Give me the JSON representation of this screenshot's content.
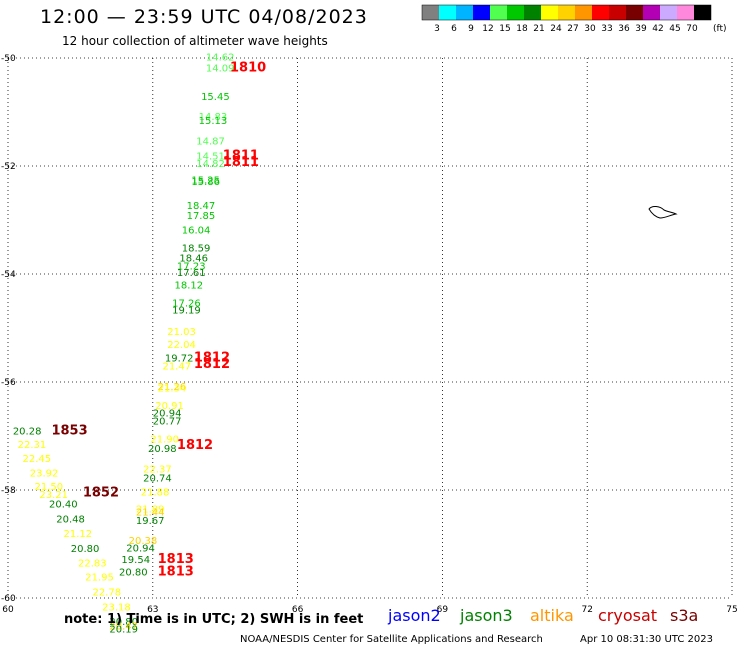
{
  "header": {
    "title": "12:00 — 23:59 UTC 04/08/2023",
    "subtitle": "12 hour collection of altimeter wave heights"
  },
  "legend": {
    "unit": "(ft)",
    "bins": [
      {
        "label": "3",
        "color": "#808080"
      },
      {
        "label": "6",
        "color": "#00ffff"
      },
      {
        "label": "9",
        "color": "#00b4ff"
      },
      {
        "label": "12",
        "color": "#0000ff"
      },
      {
        "label": "15",
        "color": "#50ff50"
      },
      {
        "label": "18",
        "color": "#00c800"
      },
      {
        "label": "21",
        "color": "#008200"
      },
      {
        "label": "24",
        "color": "#ffff00"
      },
      {
        "label": "27",
        "color": "#ffd200"
      },
      {
        "label": "30",
        "color": "#ff9600"
      },
      {
        "label": "33",
        "color": "#ff0000"
      },
      {
        "label": "36",
        "color": "#c80000"
      },
      {
        "label": "39",
        "color": "#780000"
      },
      {
        "label": "42",
        "color": "#b400b4"
      },
      {
        "label": "45",
        "color": "#ccaaff"
      },
      {
        "label": "70",
        "color": "#ff88dd"
      },
      {
        "label": "",
        "color": "#000000"
      }
    ]
  },
  "axes": {
    "lon_ticks": [
      "60",
      "63",
      "66",
      "69",
      "72",
      "75"
    ],
    "lat_ticks": [
      "-50",
      "-52",
      "-54",
      "-56",
      "-58",
      "-60"
    ]
  },
  "observations": [
    {
      "value": "14.62",
      "lon": 64.1,
      "lat": -50.05,
      "color": "#50ff50"
    },
    {
      "value": "14.09",
      "lon": 64.1,
      "lat": -50.25,
      "color": "#50ff50"
    },
    {
      "value": "15.45",
      "lon": 64.0,
      "lat": -50.78,
      "color": "#00c800"
    },
    {
      "value": "14.83",
      "lon": 63.95,
      "lat": -51.15,
      "color": "#50ff50"
    },
    {
      "value": "15.13",
      "lon": 63.95,
      "lat": -51.22,
      "color": "#00c800"
    },
    {
      "value": "14.87",
      "lon": 63.9,
      "lat": -51.6,
      "color": "#50ff50"
    },
    {
      "value": "14.51",
      "lon": 63.9,
      "lat": -51.88,
      "color": "#50ff50"
    },
    {
      "value": "14.82",
      "lon": 63.9,
      "lat": -52.02,
      "color": "#50ff50"
    },
    {
      "value": "15.25",
      "lon": 63.8,
      "lat": -52.32,
      "color": "#00c800"
    },
    {
      "value": "15.86",
      "lon": 63.8,
      "lat": -52.35,
      "color": "#00c800"
    },
    {
      "value": "18.47",
      "lon": 63.7,
      "lat": -52.8,
      "color": "#00c800"
    },
    {
      "value": "17.85",
      "lon": 63.7,
      "lat": -52.98,
      "color": "#00c800"
    },
    {
      "value": "16.04",
      "lon": 63.6,
      "lat": -53.25,
      "color": "#00c800"
    },
    {
      "value": "18.59",
      "lon": 63.6,
      "lat": -53.58,
      "color": "#008200"
    },
    {
      "value": "18.46",
      "lon": 63.55,
      "lat": -53.77,
      "color": "#008200"
    },
    {
      "value": "17.23",
      "lon": 63.5,
      "lat": -53.92,
      "color": "#00c800"
    },
    {
      "value": "17.61",
      "lon": 63.5,
      "lat": -54.04,
      "color": "#008200"
    },
    {
      "value": "18.12",
      "lon": 63.45,
      "lat": -54.27,
      "color": "#00c800"
    },
    {
      "value": "17.26",
      "lon": 63.4,
      "lat": -54.6,
      "color": "#00c800"
    },
    {
      "value": "19.19",
      "lon": 63.4,
      "lat": -54.73,
      "color": "#008200"
    },
    {
      "value": "21.03",
      "lon": 63.3,
      "lat": -55.13,
      "color": "#ffff00"
    },
    {
      "value": "22.04",
      "lon": 63.3,
      "lat": -55.37,
      "color": "#ffff00"
    },
    {
      "value": "19.72",
      "lon": 63.25,
      "lat": -55.62,
      "color": "#008200"
    },
    {
      "value": "21.47",
      "lon": 63.2,
      "lat": -55.77,
      "color": "#ffff00"
    },
    {
      "value": "21.26",
      "lon": 63.1,
      "lat": -56.15,
      "color": "#ffd200"
    },
    {
      "value": "21.34",
      "lon": 63.1,
      "lat": -56.18,
      "color": "#ffff00"
    },
    {
      "value": "20.91",
      "lon": 63.05,
      "lat": -56.5,
      "color": "#ffff00"
    },
    {
      "value": "20.94",
      "lon": 63.0,
      "lat": -56.64,
      "color": "#008200"
    },
    {
      "value": "20.77",
      "lon": 63.0,
      "lat": -56.79,
      "color": "#008200"
    },
    {
      "value": "21.90",
      "lon": 62.95,
      "lat": -57.12,
      "color": "#ffff00"
    },
    {
      "value": "20.98",
      "lon": 62.9,
      "lat": -57.3,
      "color": "#008200"
    },
    {
      "value": "22.37",
      "lon": 62.8,
      "lat": -57.68,
      "color": "#ffff00"
    },
    {
      "value": "20.74",
      "lon": 62.8,
      "lat": -57.84,
      "color": "#008200"
    },
    {
      "value": "21.88",
      "lon": 62.75,
      "lat": -58.1,
      "color": "#ffff00"
    },
    {
      "value": "21.89",
      "lon": 62.65,
      "lat": -58.42,
      "color": "#ffff00"
    },
    {
      "value": "21.44",
      "lon": 62.65,
      "lat": -58.47,
      "color": "#ffd200"
    },
    {
      "value": "19.67",
      "lon": 62.65,
      "lat": -58.63,
      "color": "#008200"
    },
    {
      "value": "20.38",
      "lon": 62.5,
      "lat": -59.0,
      "color": "#ffd200"
    },
    {
      "value": "20.94",
      "lon": 62.45,
      "lat": -59.14,
      "color": "#008200"
    },
    {
      "value": "19.54",
      "lon": 62.35,
      "lat": -59.35,
      "color": "#008200"
    },
    {
      "value": "20.80",
      "lon": 62.3,
      "lat": -59.58,
      "color": "#008200"
    },
    {
      "value": "20.28",
      "lon": 60.1,
      "lat": -56.97,
      "color": "#008200"
    },
    {
      "value": "22.31",
      "lon": 60.2,
      "lat": -57.22,
      "color": "#ffff00"
    },
    {
      "value": "22.45",
      "lon": 60.3,
      "lat": -57.48,
      "color": "#ffff00"
    },
    {
      "value": "23.92",
      "lon": 60.45,
      "lat": -57.75,
      "color": "#ffff00"
    },
    {
      "value": "21.50",
      "lon": 60.55,
      "lat": -58.0,
      "color": "#ffff00"
    },
    {
      "value": "23.21",
      "lon": 60.65,
      "lat": -58.15,
      "color": "#ffff00"
    },
    {
      "value": "20.40",
      "lon": 60.85,
      "lat": -58.32,
      "color": "#008200"
    },
    {
      "value": "20.48",
      "lon": 61.0,
      "lat": -58.6,
      "color": "#008200"
    },
    {
      "value": "21.12",
      "lon": 61.15,
      "lat": -58.87,
      "color": "#ffff00"
    },
    {
      "value": "20.80",
      "lon": 61.3,
      "lat": -59.15,
      "color": "#008200"
    },
    {
      "value": "22.83",
      "lon": 61.45,
      "lat": -59.42,
      "color": "#ffff00"
    },
    {
      "value": "21.95",
      "lon": 61.6,
      "lat": -59.68,
      "color": "#ffff00"
    },
    {
      "value": "22.78",
      "lon": 61.75,
      "lat": -59.95,
      "color": "#ffff00"
    },
    {
      "value": "23.18",
      "lon": 61.95,
      "lat": -60.23,
      "color": "#ffff00"
    },
    {
      "value": "20.80",
      "lon": 62.1,
      "lat": -60.5,
      "color": "#008200"
    },
    {
      "value": "20.47",
      "lon": 62.1,
      "lat": -60.58,
      "color": "#ffd200"
    },
    {
      "value": "20.19",
      "lon": 62.1,
      "lat": -60.64,
      "color": "#008200"
    }
  ],
  "pass_labels": [
    {
      "text": "1810",
      "lon": 64.6,
      "lat": -50.25,
      "color": "#ff0000"
    },
    {
      "text": "1811",
      "lon": 64.45,
      "lat": -51.88,
      "color": "#ff0000"
    },
    {
      "text": "1811",
      "lon": 64.45,
      "lat": -52.0,
      "color": "#ff0000"
    },
    {
      "text": "1812",
      "lon": 63.85,
      "lat": -55.62,
      "color": "#ff0000"
    },
    {
      "text": "1812",
      "lon": 63.85,
      "lat": -55.74,
      "color": "#ff0000"
    },
    {
      "text": "1812",
      "lon": 63.5,
      "lat": -57.24,
      "color": "#ff0000"
    },
    {
      "text": "1853",
      "lon": 60.9,
      "lat": -56.97,
      "color": "#780000"
    },
    {
      "text": "1852",
      "lon": 61.55,
      "lat": -58.12,
      "color": "#780000"
    },
    {
      "text": "1813",
      "lon": 63.1,
      "lat": -59.35,
      "color": "#ff0000"
    },
    {
      "text": "1813",
      "lon": 63.1,
      "lat": -59.58,
      "color": "#ff0000"
    }
  ],
  "footer": {
    "note": "note: 1) Time is in UTC; 2) SWH is in feet",
    "satellites": [
      {
        "name": "jason2",
        "color": "#0000ff"
      },
      {
        "name": "jason3",
        "color": "#008200"
      },
      {
        "name": "altika",
        "color": "#ff9600"
      },
      {
        "name": "cryosat",
        "color": "#c80000"
      },
      {
        "name": "s3a",
        "color": "#780000"
      }
    ],
    "credit": "NOAA/NESDIS Center for Satellite Applications and Research",
    "timestamp": "Apr 10 08:31:30 UTC 2023"
  }
}
